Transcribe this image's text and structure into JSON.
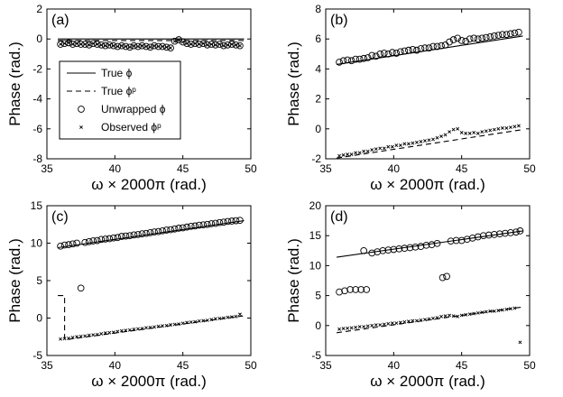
{
  "chart_data": [
    {
      "type": "scatter",
      "panel_label": "(a)",
      "xlabel": "ω × 2000π (rad.)",
      "ylabel": "Phase (rad.)",
      "xlim": [
        35,
        50
      ],
      "ylim": [
        -8,
        2
      ],
      "xticks": [
        "35",
        "40",
        "45",
        "50"
      ],
      "yticks": [
        "-8",
        "-6",
        "-4",
        "-2",
        "0",
        "2"
      ],
      "legend_placement": "lower-left",
      "series": [
        {
          "name": "True ϕ",
          "style": "solid-line",
          "x": [
            35.8,
            49.5
          ],
          "y": [
            0,
            0
          ]
        },
        {
          "name": "True ϕᵖ",
          "style": "dashed-line",
          "x": [
            35.8,
            49.5
          ],
          "y": [
            -0.1,
            -0.1
          ]
        },
        {
          "name": "Unwrapped ϕ",
          "style": "circle",
          "x": [
            36.0,
            36.3,
            36.6,
            36.9,
            37.2,
            37.5,
            37.8,
            38.1,
            38.4,
            38.7,
            39.0,
            39.3,
            39.6,
            39.9,
            40.2,
            40.5,
            40.8,
            41.1,
            41.4,
            41.7,
            42.0,
            42.3,
            42.6,
            42.9,
            43.2,
            43.5,
            43.8,
            44.1,
            44.4,
            44.7,
            45.0,
            45.3,
            45.6,
            45.9,
            46.2,
            46.5,
            46.8,
            47.1,
            47.4,
            47.7,
            48.0,
            48.3,
            48.6,
            48.9,
            49.2
          ],
          "y": [
            -0.35,
            -0.3,
            -0.25,
            -0.35,
            -0.3,
            -0.35,
            -0.35,
            -0.4,
            -0.3,
            -0.35,
            -0.4,
            -0.45,
            -0.4,
            -0.45,
            -0.5,
            -0.45,
            -0.5,
            -0.55,
            -0.45,
            -0.5,
            -0.45,
            -0.5,
            -0.55,
            -0.45,
            -0.5,
            -0.5,
            -0.55,
            -0.6,
            -0.15,
            -0.05,
            -0.2,
            -0.3,
            -0.35,
            -0.3,
            -0.35,
            -0.3,
            -0.4,
            -0.35,
            -0.4,
            -0.35,
            -0.45,
            -0.4,
            -0.35,
            -0.4,
            -0.45
          ]
        },
        {
          "name": "Observed ϕᵖ",
          "style": "x-marker",
          "x": [
            36.0,
            36.3,
            36.6,
            36.9,
            37.2,
            37.5,
            37.8,
            38.1,
            38.4,
            38.7,
            39.0,
            39.3,
            39.6,
            39.9,
            40.2,
            40.5,
            40.8,
            41.1,
            41.4,
            41.7,
            42.0,
            42.3,
            42.6,
            42.9,
            43.2,
            43.5,
            43.8,
            44.1,
            44.4,
            44.7,
            45.0,
            45.3,
            45.6,
            45.9,
            46.2,
            46.5,
            46.8,
            47.1,
            47.4,
            47.7,
            48.0,
            48.3,
            48.6,
            48.9,
            49.2
          ],
          "y": [
            -0.35,
            -0.3,
            -0.25,
            -0.35,
            -0.3,
            -0.35,
            -0.35,
            -0.4,
            -0.3,
            -0.35,
            -0.4,
            -0.45,
            -0.4,
            -0.45,
            -0.5,
            -0.45,
            -0.5,
            -0.55,
            -0.45,
            -0.5,
            -0.45,
            -0.5,
            -0.55,
            -0.45,
            -0.5,
            -0.5,
            -0.55,
            -0.6,
            -0.15,
            -0.05,
            -0.2,
            -0.3,
            -0.35,
            -0.3,
            -0.35,
            -0.3,
            -0.4,
            -0.35,
            -0.4,
            -0.35,
            -0.45,
            -0.4,
            -0.35,
            -0.4,
            -0.45
          ]
        }
      ]
    },
    {
      "type": "scatter",
      "panel_label": "(b)",
      "xlabel": "ω × 2000π (rad.)",
      "ylabel": "Phase (rad.)",
      "xlim": [
        35,
        50
      ],
      "ylim": [
        -2,
        8
      ],
      "xticks": [
        "35",
        "40",
        "45",
        "50"
      ],
      "yticks": [
        "-2",
        "0",
        "2",
        "4",
        "6",
        "8"
      ],
      "series": [
        {
          "name": "True ϕ",
          "style": "solid-line",
          "x": [
            35.8,
            49.5
          ],
          "y": [
            4.3,
            6.2
          ]
        },
        {
          "name": "True ϕᵖ",
          "style": "dashed-line",
          "x": [
            35.8,
            49.5
          ],
          "y": [
            -1.95,
            -0.05
          ]
        },
        {
          "name": "Unwrapped ϕ",
          "style": "circle",
          "x": [
            36.0,
            36.3,
            36.6,
            36.9,
            37.2,
            37.5,
            37.8,
            38.1,
            38.4,
            38.7,
            39.0,
            39.3,
            39.6,
            39.9,
            40.2,
            40.5,
            40.8,
            41.1,
            41.4,
            41.7,
            42.0,
            42.3,
            42.6,
            42.9,
            43.2,
            43.5,
            43.8,
            44.1,
            44.4,
            44.7,
            45.0,
            45.3,
            45.6,
            45.9,
            46.2,
            46.5,
            46.8,
            47.1,
            47.4,
            47.7,
            48.0,
            48.3,
            48.6,
            48.9,
            49.2
          ],
          "y": [
            4.45,
            4.55,
            4.6,
            4.55,
            4.65,
            4.65,
            4.7,
            4.75,
            4.9,
            4.85,
            5.0,
            5.05,
            5.0,
            5.1,
            5.05,
            5.15,
            5.2,
            5.25,
            5.3,
            5.25,
            5.35,
            5.4,
            5.4,
            5.5,
            5.5,
            5.55,
            5.6,
            5.8,
            5.95,
            6.05,
            5.9,
            5.85,
            6.0,
            6.05,
            6.0,
            6.05,
            6.1,
            6.15,
            6.2,
            6.25,
            6.3,
            6.3,
            6.35,
            6.4,
            6.45
          ]
        },
        {
          "name": "Observed ϕᵖ",
          "style": "x-marker",
          "x": [
            36.0,
            36.3,
            36.6,
            36.9,
            37.2,
            37.5,
            37.8,
            38.1,
            38.4,
            38.7,
            39.0,
            39.3,
            39.6,
            39.9,
            40.2,
            40.5,
            40.8,
            41.1,
            41.4,
            41.7,
            42.0,
            42.3,
            42.6,
            42.9,
            43.2,
            43.5,
            43.8,
            44.1,
            44.4,
            44.7,
            45.0,
            45.3,
            45.6,
            45.9,
            46.2,
            46.5,
            46.8,
            47.1,
            47.4,
            47.7,
            48.0,
            48.3,
            48.6,
            48.9,
            49.2
          ],
          "y": [
            -1.8,
            -1.75,
            -1.7,
            -1.7,
            -1.6,
            -1.6,
            -1.5,
            -1.5,
            -1.4,
            -1.35,
            -1.3,
            -1.3,
            -1.2,
            -1.2,
            -1.1,
            -1.1,
            -1.0,
            -1.0,
            -0.95,
            -0.9,
            -0.85,
            -0.8,
            -0.75,
            -0.7,
            -0.6,
            -0.5,
            -0.4,
            -0.2,
            -0.05,
            0.0,
            -0.25,
            -0.3,
            -0.3,
            -0.25,
            -0.3,
            -0.2,
            -0.15,
            -0.1,
            -0.05,
            0.0,
            0.05,
            0.05,
            0.1,
            0.15,
            0.2
          ]
        }
      ]
    },
    {
      "type": "scatter",
      "panel_label": "(c)",
      "xlabel": "ω × 2000π (rad.)",
      "ylabel": "Phase (rad.)",
      "xlim": [
        35,
        50
      ],
      "ylim": [
        -5,
        15
      ],
      "xticks": [
        "35",
        "40",
        "45",
        "50"
      ],
      "yticks": [
        "-5",
        "0",
        "5",
        "10",
        "15"
      ],
      "series": [
        {
          "name": "True ϕ",
          "style": "solid-line",
          "x": [
            35.8,
            49.5
          ],
          "y": [
            9.4,
            13.0
          ]
        },
        {
          "name": "True ϕᵖ",
          "style": "dashed-line",
          "x": [
            35.8,
            36.3,
            36.3,
            49.5
          ],
          "y": [
            3.0,
            3.0,
            -2.9,
            0.3
          ]
        },
        {
          "name": "Unwrapped ϕ",
          "style": "circle",
          "x": [
            36.0,
            36.3,
            36.6,
            36.9,
            37.2,
            37.5,
            37.8,
            38.1,
            38.4,
            38.7,
            39.0,
            39.3,
            39.6,
            39.9,
            40.2,
            40.5,
            40.8,
            41.1,
            41.4,
            41.7,
            42.0,
            42.3,
            42.6,
            42.9,
            43.2,
            43.5,
            43.8,
            44.1,
            44.4,
            44.7,
            45.0,
            45.3,
            45.6,
            45.9,
            46.2,
            46.5,
            46.8,
            47.1,
            47.4,
            47.7,
            48.0,
            48.3,
            48.6,
            48.9,
            49.2
          ],
          "y": [
            9.6,
            9.75,
            9.8,
            9.9,
            10.0,
            4.0,
            10.1,
            10.2,
            10.3,
            10.35,
            10.5,
            10.55,
            10.6,
            10.7,
            10.75,
            10.9,
            10.95,
            11.0,
            11.1,
            11.15,
            11.25,
            11.3,
            11.4,
            11.5,
            11.55,
            11.65,
            11.75,
            11.8,
            11.9,
            12.0,
            12.05,
            12.15,
            12.25,
            12.3,
            12.4,
            12.45,
            12.5,
            12.6,
            12.65,
            12.75,
            12.8,
            12.9,
            12.95,
            13.0,
            13.05
          ]
        },
        {
          "name": "Observed ϕᵖ",
          "style": "x-marker",
          "x": [
            36.0,
            36.3,
            36.6,
            36.9,
            37.2,
            37.5,
            37.8,
            38.1,
            38.4,
            38.7,
            39.0,
            39.3,
            39.6,
            39.9,
            40.2,
            40.5,
            40.8,
            41.1,
            41.4,
            41.7,
            42.0,
            42.3,
            42.6,
            42.9,
            43.2,
            43.5,
            43.8,
            44.1,
            44.4,
            44.7,
            45.0,
            45.3,
            45.6,
            45.9,
            46.2,
            46.5,
            46.8,
            47.1,
            47.4,
            47.7,
            48.0,
            48.3,
            48.6,
            48.9,
            49.2
          ],
          "y": [
            -2.8,
            -2.75,
            -2.7,
            -2.6,
            -2.5,
            -2.45,
            -2.4,
            -2.3,
            -2.25,
            -2.2,
            -2.1,
            -2.0,
            -1.95,
            -1.9,
            -1.8,
            -1.7,
            -1.65,
            -1.6,
            -1.5,
            -1.45,
            -1.4,
            -1.3,
            -1.25,
            -1.2,
            -1.1,
            -1.05,
            -1.0,
            -0.9,
            -0.85,
            -0.8,
            -0.7,
            -0.6,
            -0.55,
            -0.5,
            -0.4,
            -0.35,
            -0.3,
            -0.2,
            -0.1,
            -0.05,
            0.0,
            0.1,
            0.15,
            0.2,
            0.5
          ]
        }
      ]
    },
    {
      "type": "scatter",
      "panel_label": "(d)",
      "xlabel": "ω × 2000π (rad.)",
      "ylabel": "Phase (rad.)",
      "xlim": [
        35,
        50
      ],
      "ylim": [
        -5,
        20
      ],
      "xticks": [
        "35",
        "40",
        "45",
        "50"
      ],
      "yticks": [
        "-5",
        "0",
        "5",
        "10",
        "15",
        "20"
      ],
      "series": [
        {
          "name": "True ϕ",
          "style": "solid-line",
          "x": [
            35.8,
            49.5
          ],
          "y": [
            11.4,
            15.8
          ]
        },
        {
          "name": "True ϕᵖ",
          "style": "dashed-line",
          "x": [
            35.8,
            49.5
          ],
          "y": [
            -1.2,
            3.1
          ]
        },
        {
          "name": "Unwrapped ϕ",
          "style": "circle",
          "x": [
            36.0,
            36.4,
            36.8,
            37.2,
            37.6,
            38.0,
            37.8,
            38.4,
            38.8,
            39.2,
            39.6,
            40.0,
            40.4,
            40.8,
            41.2,
            41.6,
            42.0,
            42.4,
            42.8,
            43.2,
            43.6,
            43.9,
            44.2,
            44.6,
            45.0,
            45.4,
            45.8,
            46.2,
            46.6,
            47.0,
            47.4,
            47.8,
            48.2,
            48.6,
            49.0,
            49.3
          ],
          "y": [
            5.6,
            5.8,
            6.0,
            6.0,
            6.0,
            6.0,
            12.5,
            12.1,
            12.3,
            12.5,
            12.6,
            12.7,
            12.8,
            12.9,
            13.0,
            13.1,
            13.2,
            13.4,
            13.5,
            13.7,
            8.0,
            8.2,
            14.1,
            14.2,
            14.2,
            14.4,
            14.6,
            14.8,
            15.0,
            15.1,
            15.2,
            15.3,
            15.4,
            15.5,
            15.6,
            15.8
          ]
        },
        {
          "name": "Observed ϕᵖ",
          "style": "x-marker",
          "x": [
            36.0,
            36.3,
            36.6,
            36.9,
            37.2,
            37.5,
            37.8,
            38.1,
            38.4,
            38.7,
            39.0,
            39.3,
            39.6,
            39.9,
            40.2,
            40.5,
            40.8,
            41.1,
            41.4,
            41.7,
            42.0,
            42.3,
            42.6,
            42.9,
            43.2,
            43.5,
            43.8,
            44.1,
            44.4,
            44.7,
            45.0,
            45.3,
            45.6,
            45.9,
            46.2,
            46.5,
            46.8,
            47.1,
            47.4,
            47.7,
            48.0,
            48.3,
            48.6,
            48.9,
            49.3
          ],
          "y": [
            -0.6,
            -0.5,
            -0.45,
            -0.4,
            -0.3,
            -0.2,
            -0.2,
            -0.1,
            0.0,
            0.1,
            0.1,
            0.2,
            0.3,
            0.4,
            0.4,
            0.5,
            0.6,
            0.7,
            0.8,
            0.8,
            0.9,
            1.0,
            1.1,
            1.2,
            1.3,
            1.5,
            1.6,
            1.7,
            1.6,
            1.5,
            1.7,
            1.8,
            1.9,
            2.0,
            2.1,
            2.2,
            2.3,
            2.4,
            2.4,
            2.5,
            2.6,
            2.7,
            2.8,
            2.9,
            -2.8
          ]
        }
      ]
    }
  ]
}
